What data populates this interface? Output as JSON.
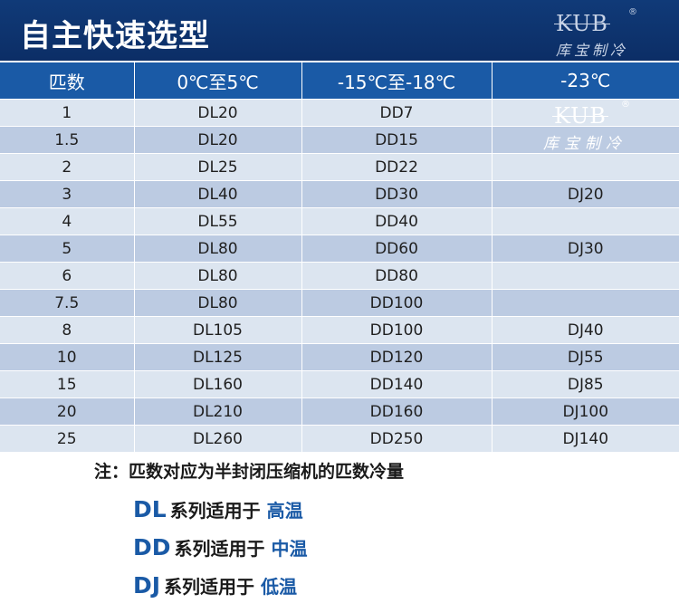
{
  "header": {
    "title": "自主快速选型",
    "logo": {
      "mark": "KUB",
      "registered": "®",
      "subtitle": "库宝制冷"
    }
  },
  "table": {
    "columns": [
      "匹数",
      "0℃至5℃",
      "-15℃至-18℃",
      "-23℃"
    ],
    "rows": [
      [
        "1",
        "DL20",
        "DD7",
        ""
      ],
      [
        "1.5",
        "DL20",
        "DD15",
        ""
      ],
      [
        "2",
        "DL25",
        "DD22",
        ""
      ],
      [
        "3",
        "DL40",
        "DD30",
        "DJ20"
      ],
      [
        "4",
        "DL55",
        "DD40",
        ""
      ],
      [
        "5",
        "DL80",
        "DD60",
        "DJ30"
      ],
      [
        "6",
        "DL80",
        "DD80",
        ""
      ],
      [
        "7.5",
        "DL80",
        "DD100",
        ""
      ],
      [
        "8",
        "DL105",
        "DD100",
        "DJ40"
      ],
      [
        "10",
        "DL125",
        "DD120",
        "DJ55"
      ],
      [
        "15",
        "DL160",
        "DD140",
        "DJ85"
      ],
      [
        "20",
        "DL210",
        "DD160",
        "DJ100"
      ],
      [
        "25",
        "DL260",
        "DD250",
        "DJ140"
      ]
    ]
  },
  "watermark": {
    "mark": "KUB",
    "registered": "®",
    "subtitle": "库宝制冷"
  },
  "notes": {
    "main": "注：匹数对应为半封闭压缩机的匹数冷量",
    "series": [
      {
        "code": "DL",
        "text": "系列适用于",
        "temp": "高温"
      },
      {
        "code": "DD",
        "text": "系列适用于",
        "temp": "中温"
      },
      {
        "code": "DJ",
        "text": "系列适用于",
        "temp": "低温"
      }
    ]
  },
  "colors": {
    "banner": "#0c2e66",
    "header_row": "#1a5aa6",
    "row_light": "#dce5f0",
    "row_dark": "#bccbe2",
    "accent_text": "#1a5aa6"
  }
}
